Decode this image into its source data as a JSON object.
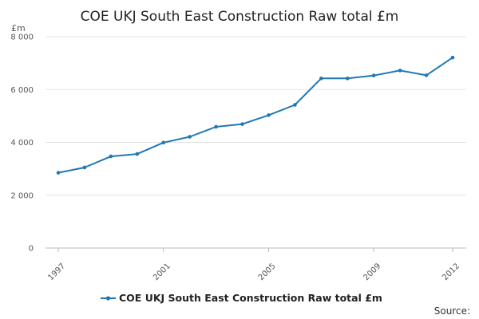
{
  "chart_data": {
    "type": "line",
    "title": "COE UKJ South East Construction Raw total £m",
    "ylabel": "£m",
    "xlabel": "",
    "ylim": [
      0,
      8000
    ],
    "yticks": [
      0,
      2000,
      4000,
      6000,
      8000
    ],
    "ytick_labels": [
      "0",
      "2 000",
      "4 000",
      "6 000",
      "8 000"
    ],
    "xlim": [
      1997,
      2012
    ],
    "xticks": [
      1997,
      2001,
      2005,
      2009,
      2012
    ],
    "xtick_labels": [
      "1997",
      "2001",
      "2005",
      "2009",
      "2012"
    ],
    "grid": true,
    "legend_position": "bottom-center",
    "series": [
      {
        "name": "COE UKJ South East Construction Raw total £m",
        "color": "#1f78b4",
        "x": [
          1997,
          1998,
          1999,
          2000,
          2001,
          2002,
          2003,
          2004,
          2005,
          2006,
          2007,
          2008,
          2009,
          2010,
          2011,
          2012
        ],
        "values": [
          2850,
          3050,
          3470,
          3560,
          3990,
          4210,
          4590,
          4690,
          5030,
          5420,
          6420,
          6420,
          6530,
          6720,
          6540,
          7210
        ]
      }
    ],
    "source_label": "Source:"
  }
}
